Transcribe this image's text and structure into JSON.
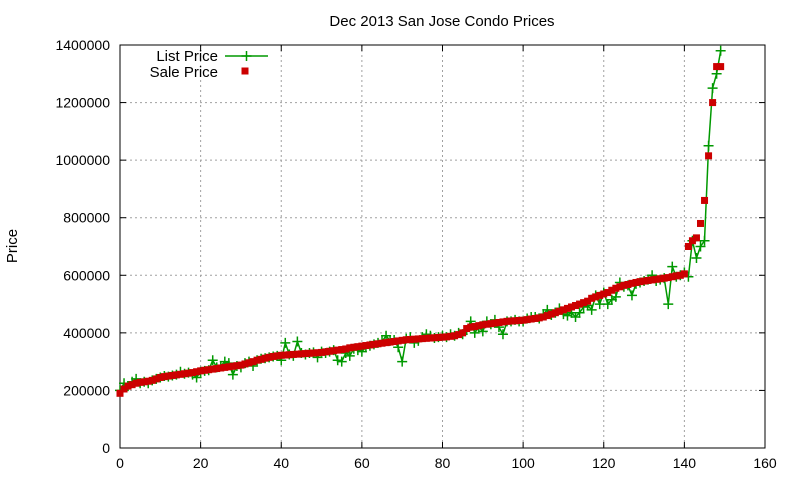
{
  "chart_data": {
    "type": "line",
    "title": "Dec 2013 San Jose Condo Prices",
    "xlabel": "",
    "ylabel": "Price",
    "xlim": [
      0,
      160
    ],
    "ylim": [
      0,
      1400000
    ],
    "grid": true,
    "legend_position": "top-left",
    "x_ticks": [
      0,
      20,
      40,
      60,
      80,
      100,
      120,
      140,
      160
    ],
    "x_tick_labels": [
      "0",
      "20",
      "40",
      "60",
      "80",
      "100",
      "120",
      "140",
      "160"
    ],
    "y_ticks": [
      0,
      200000,
      400000,
      600000,
      800000,
      1000000,
      1200000,
      1400000
    ],
    "y_tick_labels": [
      "0",
      "200000",
      "400000",
      "600000",
      "800000",
      "1000000",
      "1200000",
      "1400000"
    ],
    "series": [
      {
        "name": "List Price",
        "style": "line-with-plus-markers",
        "color": "#009900",
        "x": [
          0,
          1,
          2,
          3,
          4,
          5,
          6,
          7,
          8,
          9,
          10,
          11,
          12,
          13,
          14,
          15,
          16,
          17,
          18,
          19,
          20,
          21,
          22,
          23,
          24,
          25,
          26,
          27,
          28,
          29,
          30,
          31,
          32,
          33,
          34,
          35,
          36,
          37,
          38,
          39,
          40,
          41,
          42,
          43,
          44,
          45,
          46,
          47,
          48,
          49,
          50,
          51,
          52,
          53,
          54,
          55,
          56,
          57,
          58,
          59,
          60,
          61,
          62,
          63,
          64,
          65,
          66,
          67,
          68,
          69,
          70,
          71,
          72,
          73,
          74,
          75,
          76,
          77,
          78,
          79,
          80,
          81,
          82,
          83,
          84,
          85,
          86,
          87,
          88,
          89,
          90,
          91,
          92,
          93,
          94,
          95,
          96,
          97,
          98,
          99,
          100,
          101,
          102,
          103,
          104,
          105,
          106,
          107,
          108,
          109,
          110,
          111,
          112,
          113,
          114,
          115,
          116,
          117,
          118,
          119,
          120,
          121,
          122,
          123,
          124,
          125,
          126,
          127,
          128,
          129,
          130,
          131,
          132,
          133,
          134,
          135,
          136,
          137,
          138,
          139,
          140,
          141,
          142,
          143,
          144,
          145,
          146,
          147,
          148,
          149
        ],
        "y": [
          200000,
          225000,
          215000,
          230000,
          240000,
          225000,
          230000,
          225000,
          235000,
          240000,
          245000,
          250000,
          248000,
          252000,
          255000,
          265000,
          258000,
          262000,
          255000,
          245000,
          265000,
          268000,
          270000,
          305000,
          280000,
          285000,
          300000,
          295000,
          255000,
          285000,
          280000,
          295000,
          300000,
          285000,
          305000,
          310000,
          312000,
          315000,
          318000,
          320000,
          305000,
          365000,
          325000,
          320000,
          370000,
          330000,
          325000,
          330000,
          332000,
          315000,
          335000,
          330000,
          335000,
          340000,
          305000,
          300000,
          330000,
          320000,
          345000,
          340000,
          335000,
          350000,
          355000,
          360000,
          365000,
          370000,
          390000,
          372000,
          375000,
          350000,
          300000,
          380000,
          385000,
          365000,
          372000,
          385000,
          395000,
          390000,
          382000,
          385000,
          390000,
          385000,
          395000,
          390000,
          400000,
          395000,
          410000,
          440000,
          400000,
          420000,
          405000,
          440000,
          430000,
          445000,
          420000,
          395000,
          440000,
          440000,
          445000,
          440000,
          440000,
          450000,
          455000,
          455000,
          450000,
          465000,
          480000,
          462000,
          470000,
          485000,
          465000,
          460000,
          470000,
          455000,
          470000,
          490000,
          495000,
          480000,
          530000,
          500000,
          540000,
          500000,
          515000,
          525000,
          575000,
          560000,
          565000,
          530000,
          570000,
          575000,
          580000,
          585000,
          600000,
          580000,
          585000,
          590000,
          500000,
          630000,
          595000,
          600000,
          610000,
          595000,
          720000,
          660000,
          700000,
          720000,
          1050000,
          1250000,
          1300000,
          1380000
        ]
      },
      {
        "name": "Sale Price",
        "style": "square-markers",
        "color": "#cc0000",
        "x": [
          0,
          1,
          2,
          3,
          4,
          5,
          6,
          7,
          8,
          9,
          10,
          11,
          12,
          13,
          14,
          15,
          16,
          17,
          18,
          19,
          20,
          21,
          22,
          23,
          24,
          25,
          26,
          27,
          28,
          29,
          30,
          31,
          32,
          33,
          34,
          35,
          36,
          37,
          38,
          39,
          40,
          41,
          42,
          43,
          44,
          45,
          46,
          47,
          48,
          49,
          50,
          51,
          52,
          53,
          54,
          55,
          56,
          57,
          58,
          59,
          60,
          61,
          62,
          63,
          64,
          65,
          66,
          67,
          68,
          69,
          70,
          71,
          72,
          73,
          74,
          75,
          76,
          77,
          78,
          79,
          80,
          81,
          82,
          83,
          84,
          85,
          86,
          87,
          88,
          89,
          90,
          91,
          92,
          93,
          94,
          95,
          96,
          97,
          98,
          99,
          100,
          101,
          102,
          103,
          104,
          105,
          106,
          107,
          108,
          109,
          110,
          111,
          112,
          113,
          114,
          115,
          116,
          117,
          118,
          119,
          120,
          121,
          122,
          123,
          124,
          125,
          126,
          127,
          128,
          129,
          130,
          131,
          132,
          133,
          134,
          135,
          136,
          137,
          138,
          139,
          140,
          141,
          142,
          143,
          144,
          145,
          146,
          147,
          148,
          149
        ],
        "y": [
          190000,
          205000,
          215000,
          220000,
          225000,
          228000,
          230000,
          232000,
          235000,
          240000,
          245000,
          248000,
          250000,
          252000,
          254000,
          256000,
          258000,
          260000,
          262000,
          265000,
          268000,
          270000,
          272000,
          274000,
          276000,
          278000,
          280000,
          282000,
          284000,
          286000,
          288000,
          292000,
          296000,
          300000,
          305000,
          308000,
          312000,
          315000,
          318000,
          320000,
          322000,
          323000,
          324000,
          325000,
          326000,
          327000,
          328000,
          329000,
          330000,
          331000,
          332000,
          334000,
          336000,
          338000,
          340000,
          342000,
          344000,
          348000,
          350000,
          352000,
          354000,
          356000,
          358000,
          360000,
          362000,
          364000,
          366000,
          368000,
          370000,
          372000,
          374000,
          376000,
          377000,
          378000,
          379000,
          380000,
          381000,
          382000,
          383000,
          384000,
          385000,
          386000,
          388000,
          390000,
          394000,
          400000,
          415000,
          420000,
          422000,
          425000,
          428000,
          430000,
          432000,
          434000,
          436000,
          438000,
          440000,
          441000,
          442000,
          443000,
          444000,
          446000,
          448000,
          450000,
          452000,
          455000,
          460000,
          465000,
          470000,
          475000,
          480000,
          485000,
          490000,
          495000,
          500000,
          505000,
          510000,
          520000,
          525000,
          530000,
          535000,
          540000,
          548000,
          555000,
          560000,
          565000,
          568000,
          572000,
          575000,
          578000,
          580000,
          582000,
          584000,
          586000,
          588000,
          590000,
          592000,
          595000,
          598000,
          600000,
          605000,
          700000,
          720000,
          730000,
          780000,
          860000,
          1015000,
          1200000,
          1325000,
          1325000
        ]
      }
    ]
  }
}
